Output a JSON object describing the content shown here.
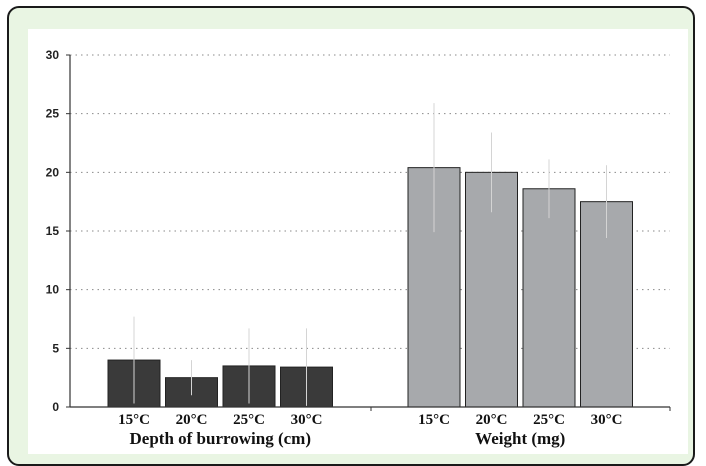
{
  "chart_data": {
    "type": "bar",
    "title": "",
    "ylabel": "",
    "ylim": [
      0,
      30
    ],
    "yticks": [
      "0",
      "5",
      "10",
      "15",
      "20",
      "25",
      "30"
    ],
    "grid": true,
    "categories": [
      "15°C",
      "20°C",
      "25°C",
      "30°C"
    ],
    "series": [
      {
        "name": "Depth of burrowing (cm)",
        "color": "#3a3a3a",
        "values": [
          4.0,
          2.5,
          3.5,
          3.4
        ],
        "error": [
          3.7,
          1.5,
          3.2,
          3.3
        ]
      },
      {
        "name": "Weight (mg)",
        "color": "#a7a9ac",
        "values": [
          20.4,
          20.0,
          18.6,
          17.5
        ],
        "error": [
          5.5,
          3.4,
          2.5,
          3.1
        ]
      }
    ]
  }
}
